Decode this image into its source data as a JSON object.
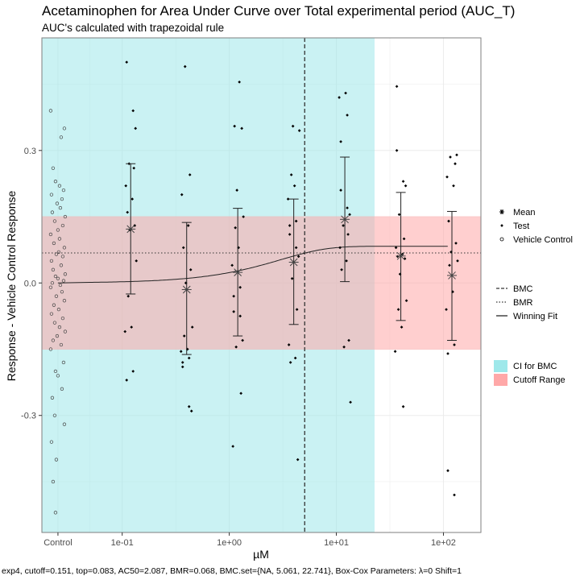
{
  "chart_data": {
    "type": "scatter",
    "title": "Acetaminophen for Area Under Curve over Total experimental period (AUC_T)",
    "subtitle": "AUC's calculated with trapezoidal rule",
    "xlabel": "µM",
    "ylabel": "Response - Vehicle Control Response",
    "footer": "exp4, cutoff=0.151, top=0.083, AC50=2.087, BMR=0.068, BMC.set={NA, 5.061, 22.741}, Box-Cox Parameters: λ=0 Shift=1",
    "x_scale": "log10",
    "xlim": [
      -1.75,
      2.35
    ],
    "ylim": [
      -0.565,
      0.555
    ],
    "x_ticks": [
      {
        "label": "Control",
        "value": -1.6
      },
      {
        "label": "1e-01",
        "value": -1
      },
      {
        "label": "1e+00",
        "value": 0
      },
      {
        "label": "1e+01",
        "value": 1
      },
      {
        "label": "1e+02",
        "value": 2
      }
    ],
    "y_ticks": [
      {
        "label": "-0.3",
        "value": -0.3
      },
      {
        "label": "0.0",
        "value": 0.0
      },
      {
        "label": "0.3",
        "value": 0.3
      }
    ],
    "grid": true,
    "legend_position": "right",
    "bmc": 5.061,
    "bmr": 0.068,
    "cutoff": 0.151,
    "ci_bmc": [
      "NA",
      22.741
    ],
    "fit": {
      "model": "exp4",
      "top": 0.083,
      "ac50": 2.087
    },
    "vehicle_control": [
      0.39,
      0.33,
      0.35,
      0.26,
      0.22,
      0.23,
      0.21,
      0.2,
      0.19,
      0.18,
      0.17,
      0.16,
      0.15,
      0.14,
      0.13,
      0.12,
      0.11,
      0.1,
      0.09,
      0.08,
      0.07,
      0.065,
      0.06,
      0.05,
      0.04,
      0.03,
      0.02,
      0.015,
      0.01,
      0.005,
      0.0,
      -0.005,
      -0.01,
      -0.02,
      -0.03,
      -0.04,
      -0.05,
      -0.06,
      -0.07,
      -0.08,
      -0.09,
      -0.1,
      -0.11,
      -0.12,
      -0.13,
      -0.14,
      -0.15,
      -0.18,
      -0.2,
      -0.21,
      -0.24,
      -0.26,
      -0.3,
      -0.32,
      -0.36,
      -0.4,
      -0.45,
      -0.52
    ],
    "groups": [
      {
        "dose": 0.12,
        "mean": 0.122,
        "upper": 0.27,
        "lower": -0.025,
        "points": [
          0.5,
          0.39,
          0.35,
          0.27,
          0.26,
          0.22,
          0.19,
          0.16,
          0.13,
          0.12,
          0.05,
          -0.03,
          -0.1,
          -0.11,
          -0.2,
          -0.22
        ]
      },
      {
        "dose": 0.4,
        "mean": -0.015,
        "upper": 0.137,
        "lower": -0.162,
        "points": [
          0.49,
          0.245,
          0.2,
          0.13,
          0.08,
          0.03,
          0.0,
          -0.1,
          -0.12,
          -0.15,
          -0.155,
          -0.17,
          -0.18,
          -0.19,
          -0.28,
          -0.29
        ]
      },
      {
        "dose": 1.2,
        "mean": 0.024,
        "upper": 0.169,
        "lower": -0.12,
        "points": [
          0.455,
          0.355,
          0.35,
          0.21,
          0.15,
          0.125,
          0.08,
          0.04,
          -0.01,
          -0.03,
          -0.065,
          -0.075,
          -0.13,
          -0.145,
          -0.25,
          -0.37
        ]
      },
      {
        "dose": 4.0,
        "mean": 0.047,
        "upper": 0.19,
        "lower": -0.094,
        "points": [
          0.355,
          0.345,
          0.245,
          0.22,
          0.19,
          0.14,
          0.13,
          0.11,
          0.08,
          0.06,
          0.01,
          -0.06,
          -0.14,
          -0.17,
          -0.18,
          -0.4
        ]
      },
      {
        "dose": 12.0,
        "mean": 0.144,
        "upper": 0.285,
        "lower": 0.003,
        "points": [
          0.43,
          0.42,
          0.38,
          0.32,
          0.21,
          0.17,
          0.155,
          0.13,
          0.11,
          0.08,
          0.05,
          0.03,
          -0.13,
          -0.145,
          -0.27
        ]
      },
      {
        "dose": 40.0,
        "mean": 0.061,
        "upper": 0.205,
        "lower": -0.085,
        "points": [
          0.445,
          0.3,
          0.23,
          0.22,
          0.155,
          0.1,
          0.08,
          0.065,
          0.06,
          0.055,
          0.02,
          -0.04,
          -0.06,
          -0.1,
          -0.155,
          -0.28
        ]
      },
      {
        "dose": 120.0,
        "mean": 0.017,
        "upper": 0.162,
        "lower": -0.13,
        "points": [
          0.29,
          0.285,
          0.27,
          0.24,
          0.22,
          0.14,
          0.09,
          0.07,
          0.05,
          0.04,
          -0.02,
          -0.06,
          -0.14,
          -0.16,
          -0.425,
          -0.48
        ]
      }
    ]
  },
  "legend": {
    "shape": [
      {
        "label": "Mean",
        "icon": "asterisk-icon"
      },
      {
        "label": "Test",
        "icon": "filled-dot-icon"
      },
      {
        "label": "Vehicle Control",
        "icon": "open-circle-icon"
      }
    ],
    "lines": [
      {
        "label": "BMC",
        "style": "dashed"
      },
      {
        "label": "BMR",
        "style": "dotted"
      },
      {
        "label": "Winning Fit",
        "style": "solid"
      }
    ],
    "fill": [
      {
        "label": "CI for BMC",
        "color": "#9ee8ea"
      },
      {
        "label": "Cutoff Range",
        "color": "#ffa8a8"
      }
    ]
  },
  "colors": {
    "ci_band": "#9ee8ea",
    "cutoff_band": "#ffa8a8",
    "panel": "#ffffff",
    "grid": "#ebebeb",
    "point": "#000000"
  }
}
